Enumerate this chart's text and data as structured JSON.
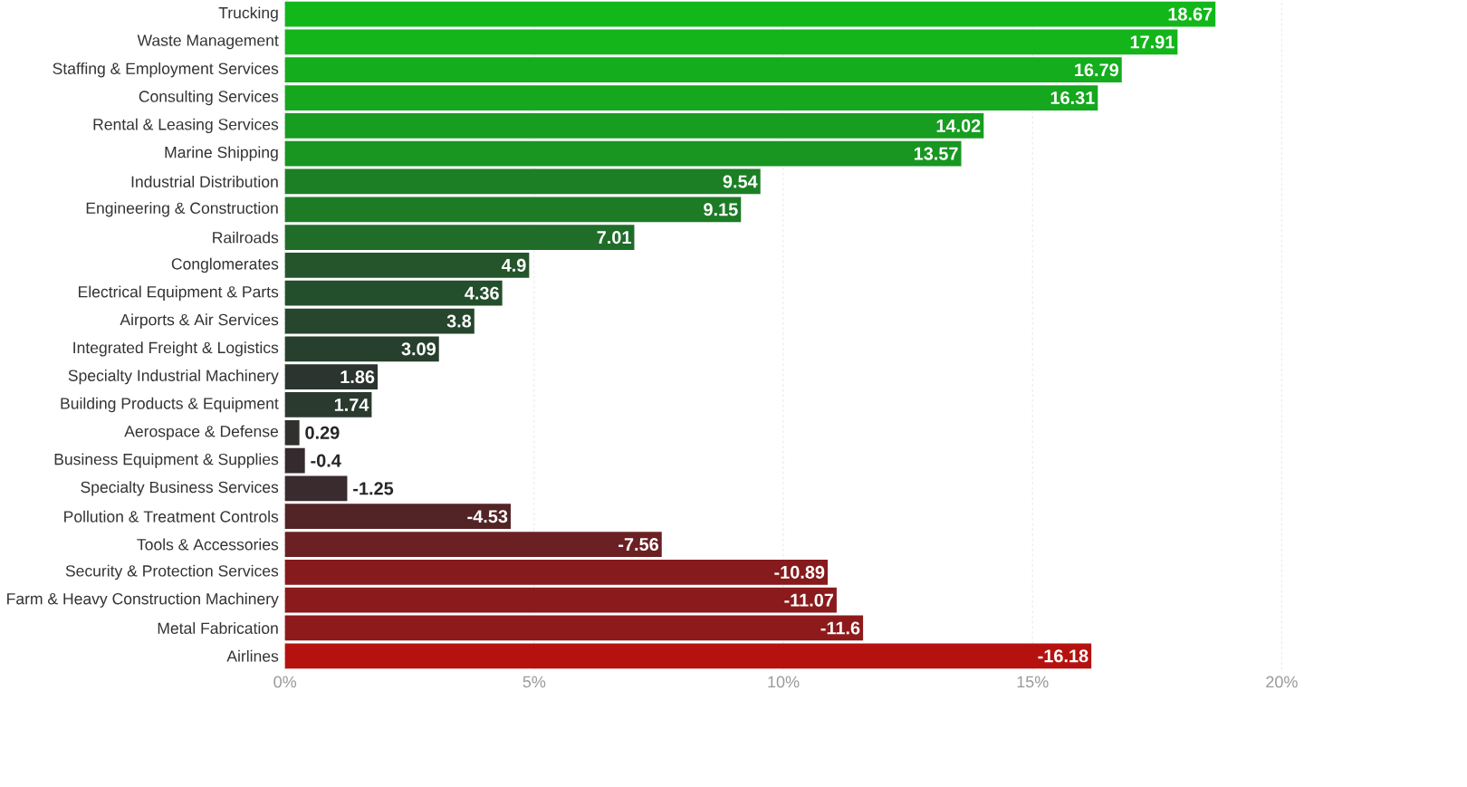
{
  "chart_data": {
    "type": "bar",
    "orientation": "horizontal",
    "categories": [
      "Trucking",
      "Waste Management",
      "Staffing & Employment Services",
      "Consulting Services",
      "Rental & Leasing Services",
      "Marine Shipping",
      "Industrial Distribution",
      "Engineering & Construction",
      "Railroads",
      "Conglomerates",
      "Electrical Equipment & Parts",
      "Airports & Air Services",
      "Integrated Freight & Logistics",
      "Specialty Industrial Machinery",
      "Building Products & Equipment",
      "Aerospace & Defense",
      "Business Equipment & Supplies",
      "Specialty Business Services",
      "Pollution & Treatment Controls",
      "Tools & Accessories",
      "Security & Protection Services",
      "Farm & Heavy Construction Machinery",
      "Metal Fabrication",
      "Airlines"
    ],
    "values": [
      18.67,
      17.91,
      16.79,
      16.31,
      14.02,
      13.57,
      9.54,
      9.15,
      7.01,
      4.9,
      4.36,
      3.8,
      3.09,
      1.86,
      1.74,
      0.29,
      -0.4,
      -1.25,
      -4.53,
      -7.56,
      -10.89,
      -11.07,
      -11.6,
      -16.18
    ],
    "base": [
      0,
      0,
      0,
      0,
      0,
      0,
      0,
      0,
      0,
      0,
      0,
      0,
      0,
      0,
      0,
      0,
      0.4,
      1.25,
      4.53,
      7.56,
      10.89,
      11.07,
      11.6,
      16.18
    ],
    "colors": [
      "#12b81a",
      "#13b51b",
      "#14ad1d",
      "#15a81e",
      "#179d20",
      "#189621",
      "#1c7f25",
      "#1d7b26",
      "#1f6d28",
      "#24552b",
      "#244f2c",
      "#26462d",
      "#27402d",
      "#2b342f",
      "#2a3a2f",
      "#30302f",
      "#352a2d",
      "#3a2b2e",
      "#522426",
      "#6b2123",
      "#861a1c",
      "#8a1a1c",
      "#8e1a1c",
      "#b5120f"
    ],
    "data_labels": true,
    "xlim": [
      0,
      20
    ],
    "xticks": [
      {
        "value": 0,
        "label": "0%"
      },
      {
        "value": 5,
        "label": "5%"
      },
      {
        "value": 10,
        "label": "10%"
      },
      {
        "value": 15,
        "label": "15%"
      },
      {
        "value": 20,
        "label": "20%"
      }
    ],
    "grid": "x"
  }
}
